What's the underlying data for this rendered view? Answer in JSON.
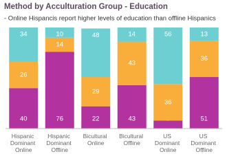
{
  "chart_data": {
    "type": "stacked-bar",
    "title": "Method by Acculturation Group - Education",
    "subtitle": "- Online Hispancis report higher levels of education than offline Hispanics",
    "categories": [
      "Hispanic Dominant Online",
      "Hispanic Dominant Offline",
      "Bicultural Online",
      "Bicultural Offline",
      "US Dominant Online",
      "US Dominant Offline"
    ],
    "series": [
      {
        "color": "#b2339f",
        "values": [
          40,
          76,
          22,
          43,
          8,
          51
        ]
      },
      {
        "color": "#f9ae3b",
        "values": [
          26,
          14,
          29,
          43,
          36,
          36
        ]
      },
      {
        "color": "#6dcfd1",
        "values": [
          34,
          10,
          48,
          14,
          56,
          13
        ]
      }
    ],
    "ylim": [
      0,
      100
    ]
  }
}
